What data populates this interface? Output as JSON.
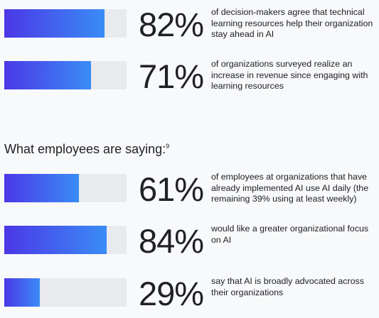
{
  "stats_top": [
    {
      "percent_label": "82%",
      "value": 82,
      "description": "of decision-makers agree that technical learning resources help their organization stay ahead in AI"
    },
    {
      "percent_label": "71%",
      "value": 71,
      "description": "of organizations surveyed realize an increase in revenue since engaging with learning resources"
    }
  ],
  "section": {
    "heading": "What employees are saying:",
    "footnote": "9"
  },
  "stats_bottom": [
    {
      "percent_label": "61%",
      "value": 61,
      "description": "of employees at organizations that have already implemented AI use AI daily (the remaining 39% using at least weekly)"
    },
    {
      "percent_label": "84%",
      "value": 84,
      "description": "would like a greater organizational focus on AI"
    },
    {
      "percent_label": "29%",
      "value": 29,
      "description": "say that AI is broadly advocated across their organizations"
    }
  ],
  "colors": {
    "bar_track": "#e8eaed",
    "bar_fill_start": "#4b38e6",
    "bar_fill_end": "#3a8cf6"
  }
}
